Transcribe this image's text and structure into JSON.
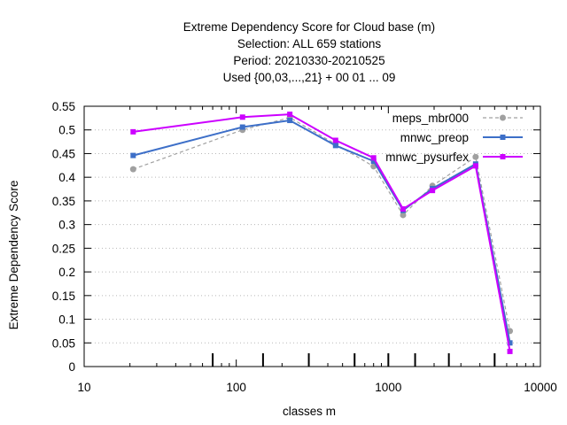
{
  "chart_data": {
    "type": "line",
    "title_lines": [
      "Extreme Dependency Score  for Cloud base (m)",
      "Selection: ALL    659 stations",
      "Period: 20210330-20210525",
      "Used {00,03,...,21} + 00 01 ... 09"
    ],
    "xlabel": "classes m",
    "ylabel": "Extreme Dependency Score",
    "x_scale": "log",
    "xlim": [
      10,
      10000
    ],
    "ylim": [
      0,
      0.55
    ],
    "x_ticks": [
      10,
      100,
      1000,
      10000
    ],
    "x_tick_labels": [
      "10",
      "100",
      "1000",
      "10000"
    ],
    "y_ticks": [
      0,
      0.05,
      0.1,
      0.15,
      0.2,
      0.25,
      0.3,
      0.35,
      0.4,
      0.45,
      0.5,
      0.55
    ],
    "y_tick_labels": [
      "0",
      "0.05",
      "0.1",
      "0.15",
      "0.2",
      "0.25",
      "0.3",
      "0.35",
      "0.4",
      "0.45",
      "0.5",
      "0.55"
    ],
    "class_markers": [
      70,
      150,
      300,
      600,
      1000,
      1500,
      2500,
      5000
    ],
    "grid": "y-major",
    "legend_position": "top-right",
    "series": [
      {
        "name": "meps_mbr000",
        "color": "#a0a0a0",
        "dashed": true,
        "marker": "circle",
        "x": [
          21,
          110,
          225,
          450,
          800,
          1250,
          1950,
          3750,
          6300
        ],
        "y": [
          0.417,
          0.5,
          0.526,
          0.47,
          0.423,
          0.32,
          0.382,
          0.443,
          0.075
        ]
      },
      {
        "name": "mnwc_preop",
        "color": "#3d6fc8",
        "dashed": false,
        "marker": "square",
        "x": [
          21,
          110,
          225,
          450,
          800,
          1250,
          1950,
          3750,
          6300
        ],
        "y": [
          0.446,
          0.506,
          0.52,
          0.467,
          0.434,
          0.33,
          0.376,
          0.428,
          0.05
        ]
      },
      {
        "name": "mnwc_pysurfex",
        "color": "#cc00ff",
        "dashed": false,
        "marker": "square",
        "x": [
          21,
          110,
          225,
          450,
          800,
          1250,
          1950,
          3750,
          6300
        ],
        "y": [
          0.496,
          0.527,
          0.533,
          0.478,
          0.441,
          0.333,
          0.372,
          0.424,
          0.032
        ]
      }
    ]
  }
}
